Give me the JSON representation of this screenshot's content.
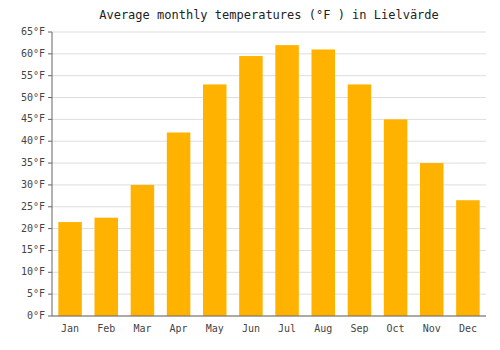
{
  "chart_data": {
    "type": "bar",
    "title": "Average monthly temperatures (°F ) in Lielvärde",
    "categories": [
      "Jan",
      "Feb",
      "Mar",
      "Apr",
      "May",
      "Jun",
      "Jul",
      "Aug",
      "Sep",
      "Oct",
      "Nov",
      "Dec"
    ],
    "values": [
      21.5,
      22.5,
      30.0,
      42.0,
      53.0,
      59.5,
      62.0,
      61.0,
      53.0,
      45.0,
      35.0,
      26.5
    ],
    "color": "#FFB300",
    "ylim": [
      0,
      65
    ],
    "yticks": [
      {
        "value": 0,
        "label": "0°F"
      },
      {
        "value": 5,
        "label": "5°F"
      },
      {
        "value": 10,
        "label": "10°F"
      },
      {
        "value": 15,
        "label": "15°F"
      },
      {
        "value": 20,
        "label": "20°F"
      },
      {
        "value": 25,
        "label": "25°F"
      },
      {
        "value": 30,
        "label": "30°F"
      },
      {
        "value": 35,
        "label": "35°F"
      },
      {
        "value": 40,
        "label": "40°F"
      },
      {
        "value": 45,
        "label": "45°F"
      },
      {
        "value": 50,
        "label": "50°F"
      },
      {
        "value": 55,
        "label": "55°F"
      },
      {
        "value": 60,
        "label": "60°F"
      },
      {
        "value": 65,
        "label": "65°F"
      }
    ],
    "grid": true
  }
}
